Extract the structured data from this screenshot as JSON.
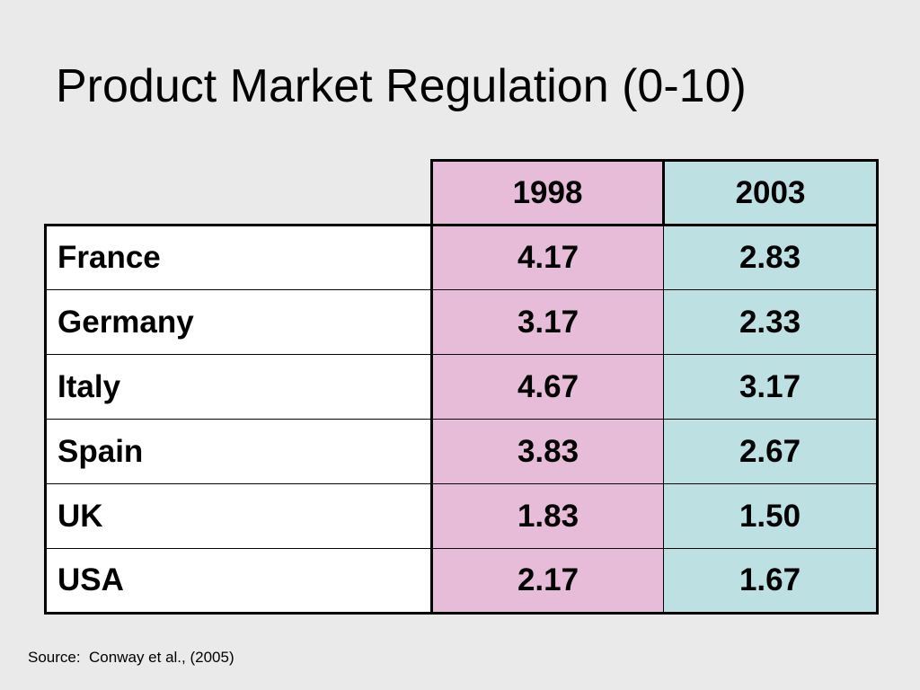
{
  "title": "Product Market Regulation (0-10)",
  "table": {
    "columns": [
      "1998",
      "2003"
    ],
    "rows": [
      {
        "country": "France",
        "values": [
          "4.17",
          "2.83"
        ]
      },
      {
        "country": "Germany",
        "values": [
          "3.17",
          "2.33"
        ]
      },
      {
        "country": "Italy",
        "values": [
          "4.67",
          "3.17"
        ]
      },
      {
        "country": "Spain",
        "values": [
          "3.83",
          "2.67"
        ]
      },
      {
        "country": "UK",
        "values": [
          "1.83",
          "1.50"
        ]
      },
      {
        "country": "USA",
        "values": [
          "2.17",
          "1.67"
        ]
      }
    ]
  },
  "colors": {
    "background": "#eaeaea",
    "column_1998": "#e6bcd9",
    "column_2003": "#bde0e3",
    "country_cells": "#ffffff"
  },
  "source": "Source:  Conway et al., (2005)"
}
